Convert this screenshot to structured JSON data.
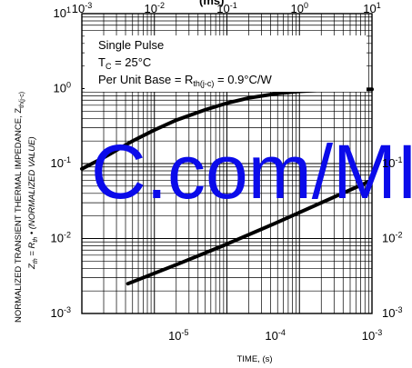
{
  "chart_data": {
    "type": "line",
    "title": "",
    "annotations": {
      "title_fragment": "(ms)",
      "line1": "Single Pulse",
      "line2_prefix": "T",
      "line2_sub": "C",
      "line2_suffix": " = 25°C",
      "line3_prefix": "Per Unit Base = R",
      "line3_sub": "th(j-c)",
      "line3_suffix": " = 0.9°C/W",
      "watermark": "C.com/MI"
    },
    "xlabel_bottom": "TIME, (s)",
    "ylabel_main_prefix": "NORMALIZED TRANSIENT THERMAL IMPEDANCE, Z",
    "ylabel_main_sub": "th(j-c)",
    "ylabel_secondary_prefix": "Z",
    "ylabel_secondary_sub1": "th",
    "ylabel_secondary_mid": " = R",
    "ylabel_secondary_sub2": "th",
    "ylabel_secondary_suffix": " • (NORMALIZED VALUE)",
    "xlim_top": [
      0.001,
      10
    ],
    "xlim_bottom": [
      1e-06,
      0.001
    ],
    "ylim": [
      0.001,
      10
    ],
    "log_x": true,
    "log_y": true,
    "grid": true,
    "top_x_tick_labels": [
      "10-3",
      "10-2",
      "10-1",
      "100",
      "101"
    ],
    "bottom_x_tick_labels": [
      "10-5",
      "10-4",
      "10-3"
    ],
    "left_y_tick_labels": [
      "101",
      "100",
      "10-1",
      "10-2",
      "10-3"
    ],
    "right_y_tick_labels": [
      "10-1",
      "10-2",
      "10-3"
    ],
    "series": [
      {
        "x_axis": "top",
        "x": [
          0.001,
          0.002,
          0.005,
          0.01,
          0.02,
          0.05,
          0.1,
          0.2,
          0.5,
          1,
          2,
          5,
          10
        ],
        "y": [
          0.085,
          0.12,
          0.2,
          0.28,
          0.38,
          0.52,
          0.64,
          0.75,
          0.86,
          0.92,
          0.95,
          0.97,
          0.98
        ]
      },
      {
        "x_axis": "bottom",
        "x": [
          3e-06,
          1e-05,
          3e-05,
          0.0001,
          0.0003,
          0.001
        ],
        "y": [
          0.0025,
          0.0046,
          0.0082,
          0.016,
          0.03,
          0.06
        ]
      }
    ]
  }
}
